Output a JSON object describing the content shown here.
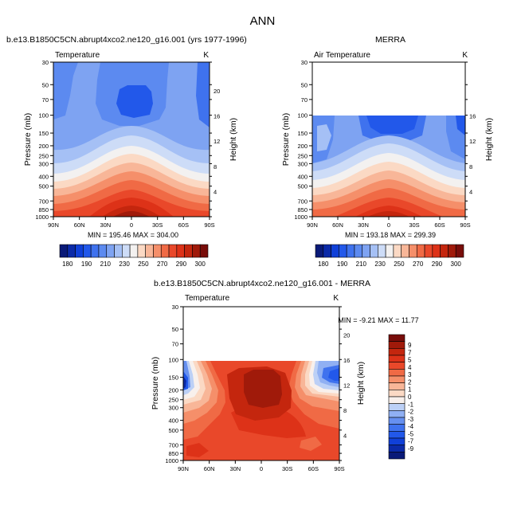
{
  "figure": {
    "title": "ANN"
  },
  "colors": {
    "abs_scale": [
      "#0a1a78",
      "#0b2aa8",
      "#1040d8",
      "#2258ea",
      "#3f72ee",
      "#5c8af0",
      "#7ea3f2",
      "#a5c0f5",
      "#cddcf7",
      "#f3f1f0",
      "#fbd9c4",
      "#f8b698",
      "#f58f6a",
      "#f06a45",
      "#e9482a",
      "#dd3218",
      "#c4260e",
      "#a01a0a",
      "#780d0a"
    ],
    "diff_scale": [
      "#0a1a78",
      "#0b2aa8",
      "#1040d8",
      "#2258ea",
      "#3f72ee",
      "#6690f0",
      "#90b0f3",
      "#bcd0f6",
      "#f8f0ec",
      "#fbd9c4",
      "#f8b698",
      "#f58f6a",
      "#f06a45",
      "#e9482a",
      "#dd3218",
      "#c4260e",
      "#a01a0a",
      "#780d0a"
    ]
  },
  "chart_data": [
    {
      "type": "heatmap",
      "title": "b.e13.B1850C5CN.abrupt4xco2.ne120_g16.001 (yrs 1977-1996)",
      "variable": "Temperature",
      "units": "K",
      "xlabel": "",
      "ylabel": "Pressure (mb)",
      "ylabel_right": "Height (km)",
      "x_ticks": [
        "90N",
        "60N",
        "30N",
        "0",
        "30S",
        "60S",
        "90S"
      ],
      "y_ticks": [
        "30",
        "50",
        "70",
        "100",
        "150",
        "200",
        "250",
        "300",
        "400",
        "500",
        "700",
        "850",
        "1000"
      ],
      "y_ticks_right": [
        "20",
        "16",
        "12",
        "8",
        "4"
      ],
      "stats": "MIN = 195.46  MAX = 304.00",
      "colorbar_labels": [
        "180",
        "190",
        "210",
        "230",
        "250",
        "270",
        "290",
        "300"
      ],
      "data_range": [
        0,
        1000
      ],
      "min": 195.46,
      "max": 304.0
    },
    {
      "type": "heatmap",
      "title": "MERRA",
      "variable": "Air Temperature",
      "units": "K",
      "xlabel": "",
      "ylabel": "Pressure (mb)",
      "ylabel_right": "Height (km)",
      "x_ticks": [
        "90N",
        "60N",
        "30N",
        "0",
        "30S",
        "60S",
        "90S"
      ],
      "y_ticks": [
        "30",
        "50",
        "70",
        "100",
        "150",
        "200",
        "250",
        "300",
        "400",
        "500",
        "700",
        "850",
        "1000"
      ],
      "y_ticks_right": [
        "16",
        "12",
        "8",
        "4"
      ],
      "stats": "MIN = 193.18  MAX = 299.39",
      "colorbar_labels": [
        "180",
        "190",
        "210",
        "230",
        "250",
        "270",
        "290",
        "300"
      ],
      "data_range": [
        100,
        1000
      ],
      "min": 193.18,
      "max": 299.39
    },
    {
      "type": "heatmap",
      "title": "b.e13.B1850C5CN.abrupt4xco2.ne120_g16.001 - MERRA",
      "variable": "Temperature",
      "units": "K",
      "xlabel": "",
      "ylabel": "Pressure (mb)",
      "ylabel_right": "Height (km)",
      "x_ticks": [
        "90N",
        "60N",
        "30N",
        "0",
        "30S",
        "60S",
        "90S"
      ],
      "y_ticks": [
        "30",
        "50",
        "70",
        "100",
        "150",
        "200",
        "250",
        "300",
        "400",
        "500",
        "700",
        "850",
        "1000"
      ],
      "y_ticks_right": [
        "20",
        "16",
        "12",
        "8",
        "4"
      ],
      "stats": "MIN = -9.21  MAX = 11.77",
      "colorbar_labels": [
        "9",
        "7",
        "5",
        "4",
        "3",
        "2",
        "1",
        "0",
        "-1",
        "-2",
        "-3",
        "-4",
        "-5",
        "-7",
        "-9"
      ],
      "data_range": [
        100,
        1000
      ],
      "min": -9.21,
      "max": 11.77
    }
  ]
}
